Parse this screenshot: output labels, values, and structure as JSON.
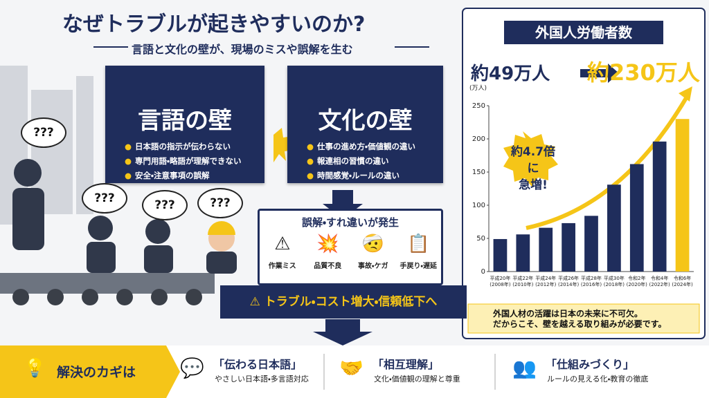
{
  "header": {
    "title": "なぜトラブルが起きやすいのか?",
    "subtitle": "言語と文化の壁が、現場のミスや誤解を生む"
  },
  "walls": [
    {
      "title": "言語の壁",
      "items": [
        "日本語の指示が伝わらない",
        "専門用語・略語が理解できない",
        "安全・注意事項の誤解"
      ]
    },
    {
      "title": "文化の壁",
      "items": [
        "仕事の進め方・価値観の違い",
        "報連相の習慣の違い",
        "時間感覚・ルールの違い"
      ]
    }
  ],
  "bubbles": [
    "???",
    "???",
    "???",
    "???"
  ],
  "issues": {
    "title": "誤解・すれ違いが発生",
    "items": [
      "作業ミス",
      "品質不良",
      "事故・ケガ",
      "手戻り・遅延"
    ]
  },
  "result": "トラブル・コスト増大・信頼低下へ",
  "stats": {
    "title": "外国人労働者数",
    "from": "約49万人",
    "to": "約230万人",
    "burst": "約4.7倍に\n急増!",
    "note": "外国人材の活躍は日本の未来に不可欠。\nだからこそ、壁を越える取り組みが必要です。"
  },
  "chart_data": {
    "type": "bar",
    "y_label": "(万人)",
    "categories": [
      "平成20年\n(2008年)",
      "平成22年\n(2010年)",
      "平成24年\n(2012年)",
      "平成26年\n(2014年)",
      "平成28年\n(2016年)",
      "平成30年\n(2018年)",
      "令和2年\n(2020年)",
      "令和4年\n(2022年)",
      "令和6年\n(2024年)"
    ],
    "values": [
      49,
      56,
      66,
      73,
      84,
      131,
      162,
      196,
      230
    ],
    "colors": [
      "#1f2d5c",
      "#1f2d5c",
      "#1f2d5c",
      "#1f2d5c",
      "#1f2d5c",
      "#1f2d5c",
      "#1f2d5c",
      "#1f2d5c",
      "#f5c518"
    ],
    "ylim": [
      0,
      250
    ],
    "yticks": [
      0,
      50,
      100,
      150,
      200,
      250
    ],
    "grid": false
  },
  "solutions": {
    "title": "解決のカギは",
    "items": [
      {
        "title": "「伝わる日本語」",
        "text": "やさしい日本語・多言語対応"
      },
      {
        "title": "「相互理解」",
        "text": "文化・価値観の理解と尊重"
      },
      {
        "title": "「仕組みづくり」",
        "text": "ルールの見える化・教育の徹底"
      }
    ]
  }
}
